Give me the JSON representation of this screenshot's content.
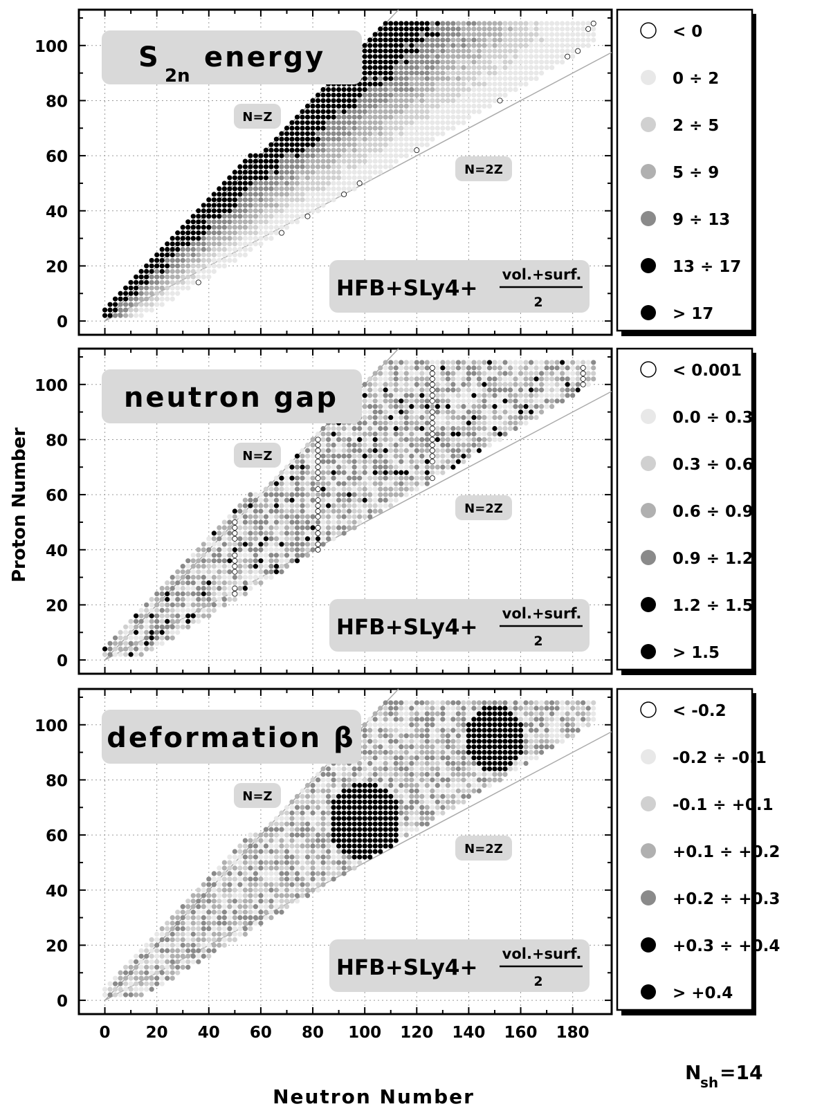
{
  "chart_data": [
    {
      "type": "scatter",
      "title": "S2n energy",
      "title_main": "S",
      "title_sub": "2n",
      "title_rest": "energy",
      "model_label": "HFB+SLy4+",
      "fraction_num": "vol.+surf.",
      "fraction_den": "2",
      "line_labels": [
        "N=Z",
        "N=2Z"
      ],
      "legend": [
        "< 0",
        "0 ÷ 2",
        "2 ÷ 5",
        "5 ÷ 9",
        "9 ÷ 13",
        "13 ÷ 17",
        "> 17"
      ],
      "ylabel": "",
      "xlim": [
        -10,
        195
      ],
      "ylim": [
        -5,
        113
      ],
      "yticks": [
        0,
        20,
        40,
        60,
        80,
        100
      ],
      "grid": true,
      "legend_placement": "right"
    },
    {
      "type": "scatter",
      "title": "neutron gap",
      "model_label": "HFB+SLy4+",
      "fraction_num": "vol.+surf.",
      "fraction_den": "2",
      "line_labels": [
        "N=Z",
        "N=2Z"
      ],
      "legend": [
        "< 0.001",
        "0.0 ÷ 0.3",
        "0.3 ÷ 0.6",
        "0.6 ÷ 0.9",
        "0.9 ÷ 1.2",
        "1.2 ÷ 1.5",
        "> 1.5"
      ],
      "ylabel": "Proton Number",
      "xlim": [
        -10,
        195
      ],
      "ylim": [
        -5,
        113
      ],
      "yticks": [
        0,
        20,
        40,
        60,
        80,
        100
      ],
      "grid": true,
      "legend_placement": "right"
    },
    {
      "type": "scatter",
      "title": "deformation β",
      "model_label": "HFB+SLy4+",
      "fraction_num": "vol.+surf.",
      "fraction_den": "2",
      "line_labels": [
        "N=Z",
        "N=2Z"
      ],
      "legend": [
        "< -0.2",
        "-0.2 ÷ -0.1",
        "-0.1 ÷ +0.1",
        "+0.1 ÷ +0.2",
        "+0.2 ÷ +0.3",
        "+0.3 ÷ +0.4",
        "> +0.4"
      ],
      "ylabel": "",
      "xlabel": "Neutron Number",
      "xticks": [
        0,
        20,
        40,
        60,
        80,
        100,
        120,
        140,
        160,
        180
      ],
      "xlim": [
        -10,
        195
      ],
      "ylim": [
        -5,
        113
      ],
      "yticks": [
        0,
        20,
        40,
        60,
        80,
        100
      ],
      "grid": true,
      "legend_placement": "right"
    }
  ],
  "legend_colors": [
    "#ffffff",
    "#e8e8e8",
    "#d0d0d0",
    "#b0b0b0",
    "#8a8a8a",
    "#000000",
    "#000000"
  ],
  "footer": {
    "nsh_main": "N",
    "nsh_sub": "sh",
    "nsh_value": "=14"
  }
}
